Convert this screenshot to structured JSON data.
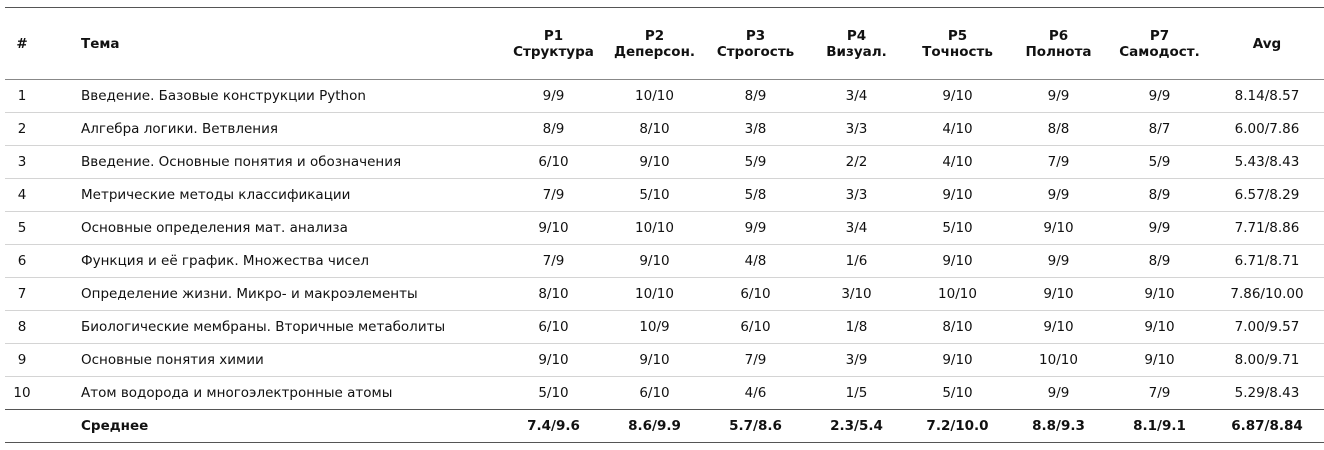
{
  "header": {
    "num": "#",
    "topic": "Тема",
    "p1": {
      "code": "P1",
      "name": "Структура"
    },
    "p2": {
      "code": "P2",
      "name": "Деперсон."
    },
    "p3": {
      "code": "P3",
      "name": "Строгость"
    },
    "p4": {
      "code": "P4",
      "name": "Визуал."
    },
    "p5": {
      "code": "P5",
      "name": "Точность"
    },
    "p6": {
      "code": "P6",
      "name": "Полнота"
    },
    "p7": {
      "code": "P7",
      "name": "Самодост."
    },
    "avg": "Avg"
  },
  "rows": [
    {
      "n": "1",
      "topic": "Введение. Базовые конструкции Python",
      "p": [
        "9/9",
        "10/10",
        "8/9",
        "3/4",
        "9/10",
        "9/9",
        "9/9"
      ],
      "avg": "8.14/8.57"
    },
    {
      "n": "2",
      "topic": "Алгебра логики. Ветвления",
      "p": [
        "8/9",
        "8/10",
        "3/8",
        "3/3",
        "4/10",
        "8/8",
        "8/7"
      ],
      "avg": "6.00/7.86"
    },
    {
      "n": "3",
      "topic": "Введение. Основные понятия и обозначения",
      "p": [
        "6/10",
        "9/10",
        "5/9",
        "2/2",
        "4/10",
        "7/9",
        "5/9"
      ],
      "avg": "5.43/8.43"
    },
    {
      "n": "4",
      "topic": "Метрические методы классификации",
      "p": [
        "7/9",
        "5/10",
        "5/8",
        "3/3",
        "9/10",
        "9/9",
        "8/9"
      ],
      "avg": "6.57/8.29"
    },
    {
      "n": "5",
      "topic": "Основные определения мат. анализа",
      "p": [
        "9/10",
        "10/10",
        "9/9",
        "3/4",
        "5/10",
        "9/10",
        "9/9"
      ],
      "avg": "7.71/8.86"
    },
    {
      "n": "6",
      "topic": "Функция и её график. Множества чисел",
      "p": [
        "7/9",
        "9/10",
        "4/8",
        "1/6",
        "9/10",
        "9/9",
        "8/9"
      ],
      "avg": "6.71/8.71"
    },
    {
      "n": "7",
      "topic": "Определение жизни. Микро- и макроэлементы",
      "p": [
        "8/10",
        "10/10",
        "6/10",
        "3/10",
        "10/10",
        "9/10",
        "9/10"
      ],
      "avg": "7.86/10.00"
    },
    {
      "n": "8",
      "topic": "Биологические мембраны. Вторичные метаболиты",
      "p": [
        "6/10",
        "10/9",
        "6/10",
        "1/8",
        "8/10",
        "9/10",
        "9/10"
      ],
      "avg": "7.00/9.57"
    },
    {
      "n": "9",
      "topic": "Основные понятия химии",
      "p": [
        "9/10",
        "9/10",
        "7/9",
        "3/9",
        "9/10",
        "10/10",
        "9/10"
      ],
      "avg": "8.00/9.71"
    },
    {
      "n": "10",
      "topic": "Атом водорода и многоэлектронные атомы",
      "p": [
        "5/10",
        "6/10",
        "4/6",
        "1/5",
        "5/10",
        "9/9",
        "7/9"
      ],
      "avg": "5.29/8.43"
    }
  ],
  "footer": {
    "n": "",
    "label": "Среднее",
    "p": [
      "7.4/9.6",
      "8.6/9.9",
      "5.7/8.6",
      "2.3/5.4",
      "7.2/10.0",
      "8.8/9.3",
      "8.1/9.1"
    ],
    "avg": "6.87/8.84"
  }
}
